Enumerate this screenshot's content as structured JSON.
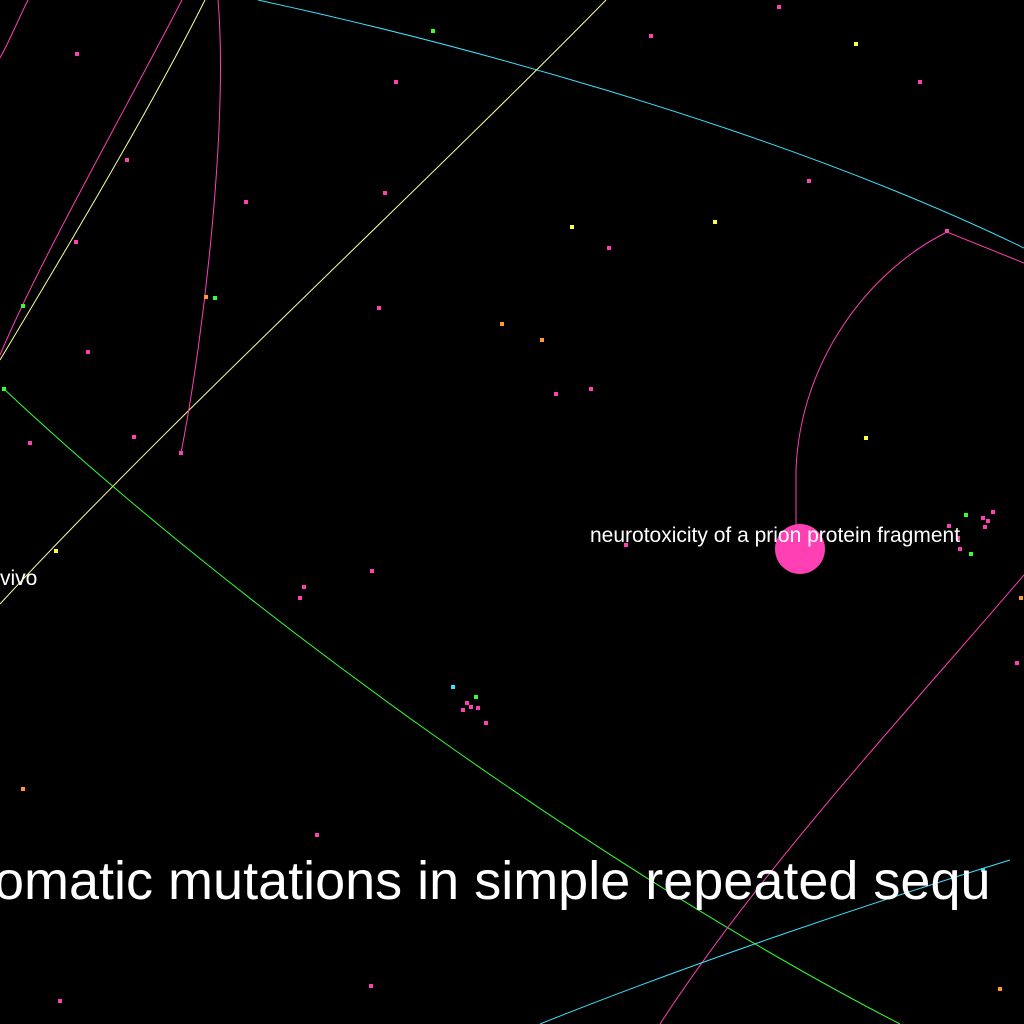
{
  "colors": {
    "background": "#000000",
    "magenta": "#ff3fb4",
    "yellow": "#ffff40",
    "green": "#33ff33",
    "cyan": "#40e0ff",
    "orange": "#ff9933",
    "pale_yellow": "#ffff99",
    "label": "#ffffff"
  },
  "labels": {
    "prion": "neurotoxicity of a prion protein fragment",
    "vivo": "vivo",
    "mutations": "omatic mutations in simple repeated sequ"
  },
  "nodes": [
    {
      "id": "prion-hub",
      "color": "magenta",
      "size": "large"
    }
  ]
}
